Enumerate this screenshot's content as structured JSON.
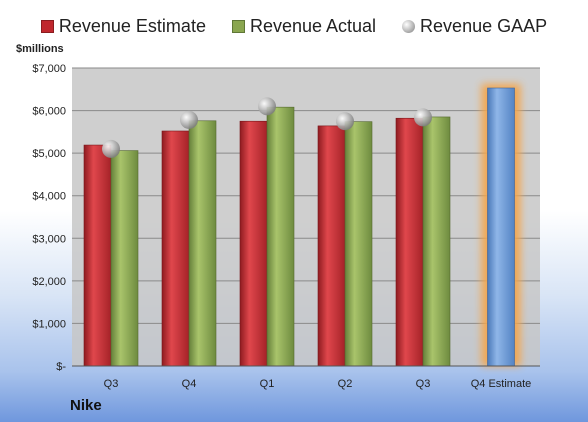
{
  "chart_data": {
    "type": "bar",
    "categories": [
      "Q3",
      "Q4",
      "Q1",
      "Q2",
      "Q3",
      "Q4 Estimate"
    ],
    "series": [
      {
        "name": "Revenue Estimate",
        "values": [
          5190,
          5520,
          5750,
          5640,
          5820,
          null
        ]
      },
      {
        "name": "Revenue Actual",
        "values": [
          5060,
          5760,
          6080,
          5740,
          5850,
          null
        ]
      },
      {
        "name": "Revenue GAAP",
        "values": [
          5100,
          5780,
          6100,
          5750,
          5840,
          null
        ]
      }
    ],
    "forecast": {
      "category": "Q4 Estimate",
      "value": 6530
    },
    "ylabel": "$millions",
    "ylim": [
      0,
      7000
    ],
    "yticks": [
      0,
      1000,
      2000,
      3000,
      4000,
      5000,
      6000,
      7000
    ],
    "ytick_labels": [
      "$-",
      "$1,000",
      "$2,000",
      "$3,000",
      "$4,000",
      "$5,000",
      "$6,000",
      "$7,000"
    ],
    "grid": true,
    "legend_position": "top"
  },
  "footer": {
    "company": "Nike"
  },
  "colors": {
    "estimate": "#c0272d",
    "actual": "#8aa64f",
    "forecast": "#6b9ad6",
    "forecast_glow": "#f5a54a",
    "plot_bg": "#c7c7c7"
  }
}
